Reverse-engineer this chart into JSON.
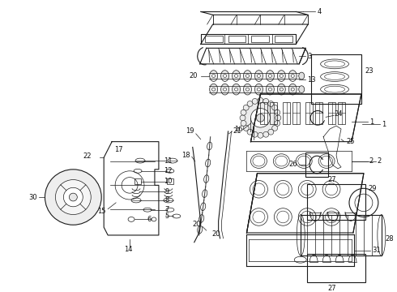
{
  "bg_color": "#ffffff",
  "fig_width": 4.9,
  "fig_height": 3.6,
  "dpi": 100,
  "line_color": "#1a1a1a",
  "label_fontsize": 6.0,
  "label_color": "#111111",
  "callout_fontsize": 6.5
}
